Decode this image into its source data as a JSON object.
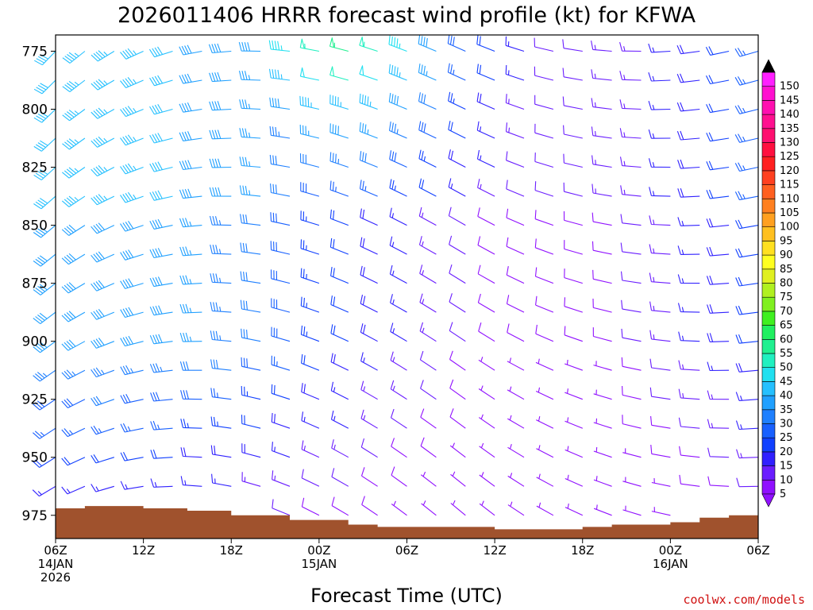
{
  "chart_data": {
    "type": "wind-barb-profile",
    "title": "2026011406 HRRR forecast wind profile (kt) for KFWA",
    "xlabel": "Forecast Time (UTC)",
    "ylabel": "",
    "credit": "coolwx.com/models",
    "x_range_hours": [
      0,
      48
    ],
    "y_range_hPa": [
      768,
      985
    ],
    "y_ticks": [
      {
        "value": 775,
        "label": "775"
      },
      {
        "value": 800,
        "label": "800"
      },
      {
        "value": 825,
        "label": "825"
      },
      {
        "value": 850,
        "label": "850"
      },
      {
        "value": 875,
        "label": "875"
      },
      {
        "value": 900,
        "label": "900"
      },
      {
        "value": 925,
        "label": "925"
      },
      {
        "value": 950,
        "label": "950"
      },
      {
        "value": 975,
        "label": "975"
      }
    ],
    "x_ticks": [
      {
        "hour": 0,
        "lines": [
          "06Z",
          "14JAN",
          "2026"
        ]
      },
      {
        "hour": 6,
        "lines": [
          "12Z"
        ]
      },
      {
        "hour": 12,
        "lines": [
          "18Z"
        ]
      },
      {
        "hour": 18,
        "lines": [
          "00Z",
          "15JAN"
        ]
      },
      {
        "hour": 24,
        "lines": [
          "06Z"
        ]
      },
      {
        "hour": 30,
        "lines": [
          "12Z"
        ]
      },
      {
        "hour": 36,
        "lines": [
          "18Z"
        ]
      },
      {
        "hour": 42,
        "lines": [
          "00Z",
          "16JAN"
        ]
      },
      {
        "hour": 48,
        "lines": [
          "06Z"
        ]
      }
    ],
    "terrain_surface_pressure_hPa": [
      [
        0,
        972
      ],
      [
        2,
        971
      ],
      [
        6,
        972
      ],
      [
        9,
        973
      ],
      [
        12,
        975
      ],
      [
        16,
        977
      ],
      [
        20,
        979
      ],
      [
        22,
        980
      ],
      [
        24,
        980
      ],
      [
        28,
        980
      ],
      [
        30,
        981
      ],
      [
        32,
        981
      ],
      [
        35,
        981
      ],
      [
        36,
        980
      ],
      [
        38,
        979
      ],
      [
        40,
        979
      ],
      [
        42,
        978
      ],
      [
        44,
        976
      ],
      [
        46,
        975
      ],
      [
        48,
        972
      ]
    ],
    "barb_hours": [
      0,
      2,
      4,
      6,
      8,
      10,
      12,
      14,
      16,
      18,
      20,
      22,
      24,
      26,
      28,
      30,
      32,
      34,
      36,
      38,
      40,
      42,
      44,
      46,
      48
    ],
    "barb_levels_hPa": [
      775,
      787.5,
      800,
      812.5,
      825,
      837.5,
      850,
      862.5,
      875,
      887.5,
      900,
      912.5,
      925,
      937.5,
      950,
      962.5,
      975
    ],
    "wind_speed_model_kt": {
      "upper_core_hour": 20,
      "upper_core_speed": 48,
      "background_speed": 35,
      "low_level_min_speed": 8
    },
    "wind_direction_model_deg": {
      "start_dir": 230,
      "mid_dir": 300,
      "end_dir": 260
    },
    "colorbar": {
      "labels": [
        "5",
        "10",
        "15",
        "20",
        "25",
        "30",
        "35",
        "40",
        "45",
        "50",
        "55",
        "60",
        "65",
        "70",
        "75",
        "80",
        "85",
        "90",
        "95",
        "100",
        "105",
        "110",
        "115",
        "120",
        "125",
        "130",
        "135",
        "140",
        "145",
        "150"
      ],
      "values": [
        5,
        10,
        15,
        20,
        25,
        30,
        35,
        40,
        45,
        50,
        55,
        60,
        65,
        70,
        75,
        80,
        85,
        90,
        95,
        100,
        105,
        110,
        115,
        120,
        125,
        130,
        135,
        140,
        145,
        150
      ],
      "colors": [
        "#9010ff",
        "#6a1dff",
        "#3020ff",
        "#1040ff",
        "#1860ff",
        "#1f80ff",
        "#20a0ff",
        "#25c0ff",
        "#20e0f0",
        "#20f0c0",
        "#20f090",
        "#20f060",
        "#40f020",
        "#80f020",
        "#b0f020",
        "#e0f020",
        "#ffff20",
        "#ffe020",
        "#ffc020",
        "#ffa020",
        "#ff8020",
        "#ff6020",
        "#ff4020",
        "#ff2020",
        "#ff1040",
        "#ff1070",
        "#ff1090",
        "#ff10b0",
        "#ff10d0",
        "#ff20ff"
      ],
      "max_arrow_color": "#000000"
    }
  }
}
